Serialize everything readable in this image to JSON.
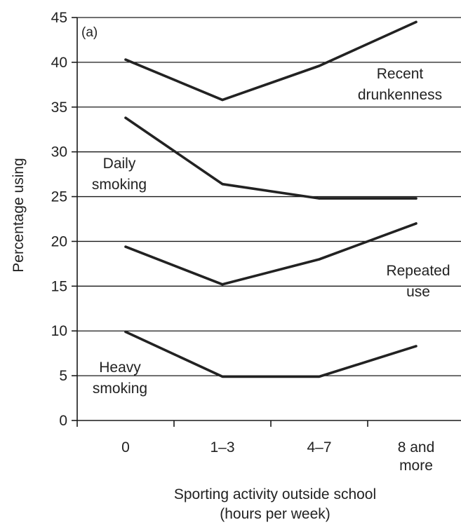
{
  "chart_data": {
    "type": "line",
    "panel_label": "(a)",
    "xlabel": [
      "Sporting activity outside school",
      "(hours per week)"
    ],
    "ylabel": "Percentage using",
    "categories": [
      [
        "0"
      ],
      [
        "1–3"
      ],
      [
        "4–7"
      ],
      [
        "8 and",
        "more"
      ]
    ],
    "ylim": [
      0,
      45
    ],
    "yticks": [
      0,
      5,
      10,
      15,
      20,
      25,
      30,
      35,
      40,
      45
    ],
    "grid": "horizontal",
    "series": [
      {
        "name": [
          "Recent",
          "drunkenness"
        ],
        "values": [
          40.3,
          35.8,
          39.6,
          44.5
        ]
      },
      {
        "name": [
          "Daily",
          "smoking"
        ],
        "values": [
          33.8,
          26.4,
          24.8,
          24.8
        ]
      },
      {
        "name": [
          "Repeated",
          "use"
        ],
        "values": [
          19.4,
          15.2,
          18.0,
          22.0
        ]
      },
      {
        "name": [
          "Heavy",
          "smoking"
        ],
        "values": [
          9.9,
          4.9,
          4.9,
          8.3
        ]
      }
    ]
  }
}
